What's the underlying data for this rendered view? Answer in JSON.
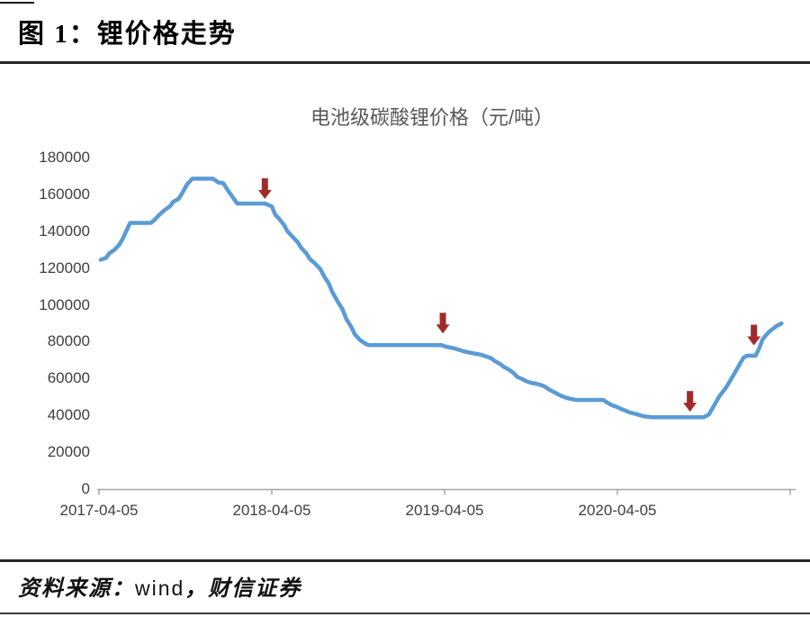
{
  "figure": {
    "title": "图 1：锂价格走势"
  },
  "source": {
    "prefix": "资料来源：",
    "name": "wind",
    "suffix": "，财信证券"
  },
  "chart_data": {
    "type": "line",
    "title": "电池级碳酸锂价格（元/吨）",
    "xlabel": "",
    "ylabel": "元/吨",
    "ylim": [
      0,
      180000
    ],
    "y_ticks": [
      180000,
      160000,
      140000,
      120000,
      100000,
      80000,
      60000,
      40000,
      20000,
      0
    ],
    "x_tick_labels": [
      "2017-04-05",
      "2018-04-05",
      "2019-04-05",
      "2020-04-05"
    ],
    "x_axis_note": "t_years = years since 2017-04-05; axis extends to 2021-04-05",
    "grid": false,
    "legend": "none",
    "line_color": "#5B9BD5",
    "arrow_color": "#A02C2A",
    "axis_color": "#A6A6A6",
    "series": [
      {
        "name": "电池级碳酸锂价格",
        "unit": "元/吨",
        "points": [
          [
            0.01,
            124500
          ],
          [
            0.04,
            125500
          ],
          [
            0.06,
            128000
          ],
          [
            0.09,
            130000
          ],
          [
            0.12,
            133000
          ],
          [
            0.14,
            136500
          ],
          [
            0.17,
            142500
          ],
          [
            0.18,
            144500
          ],
          [
            0.3,
            144500
          ],
          [
            0.32,
            146000
          ],
          [
            0.35,
            149000
          ],
          [
            0.38,
            151500
          ],
          [
            0.41,
            153500
          ],
          [
            0.43,
            156000
          ],
          [
            0.46,
            157500
          ],
          [
            0.48,
            160500
          ],
          [
            0.51,
            165500
          ],
          [
            0.54,
            168500
          ],
          [
            0.66,
            168500
          ],
          [
            0.69,
            166500
          ],
          [
            0.72,
            166000
          ],
          [
            0.74,
            163000
          ],
          [
            0.77,
            159000
          ],
          [
            0.8,
            155000
          ],
          [
            0.96,
            155000
          ],
          [
            1.0,
            153500
          ],
          [
            1.02,
            149000
          ],
          [
            1.04,
            147000
          ],
          [
            1.07,
            143500
          ],
          [
            1.09,
            140000
          ],
          [
            1.12,
            137000
          ],
          [
            1.15,
            134000
          ],
          [
            1.17,
            131000
          ],
          [
            1.2,
            128000
          ],
          [
            1.22,
            125000
          ],
          [
            1.25,
            122500
          ],
          [
            1.28,
            119500
          ],
          [
            1.3,
            116000
          ],
          [
            1.33,
            111500
          ],
          [
            1.35,
            107000
          ],
          [
            1.38,
            102000
          ],
          [
            1.41,
            97500
          ],
          [
            1.43,
            92500
          ],
          [
            1.46,
            88000
          ],
          [
            1.48,
            84000
          ],
          [
            1.51,
            81000
          ],
          [
            1.54,
            79000
          ],
          [
            1.56,
            78200
          ],
          [
            1.98,
            78200
          ],
          [
            2.01,
            77300
          ],
          [
            2.06,
            76300
          ],
          [
            2.11,
            74800
          ],
          [
            2.16,
            73800
          ],
          [
            2.21,
            73000
          ],
          [
            2.24,
            72000
          ],
          [
            2.27,
            71000
          ],
          [
            2.29,
            69500
          ],
          [
            2.32,
            68000
          ],
          [
            2.34,
            66500
          ],
          [
            2.37,
            65000
          ],
          [
            2.4,
            63000
          ],
          [
            2.42,
            61000
          ],
          [
            2.45,
            59700
          ],
          [
            2.47,
            58700
          ],
          [
            2.5,
            57700
          ],
          [
            2.53,
            57200
          ],
          [
            2.55,
            56700
          ],
          [
            2.58,
            55700
          ],
          [
            2.6,
            54300
          ],
          [
            2.63,
            52800
          ],
          [
            2.66,
            51300
          ],
          [
            2.68,
            50400
          ],
          [
            2.71,
            49400
          ],
          [
            2.73,
            49000
          ],
          [
            2.76,
            48400
          ],
          [
            2.92,
            48400
          ],
          [
            2.94,
            47000
          ],
          [
            2.97,
            45500
          ],
          [
            3.0,
            44500
          ],
          [
            3.02,
            43500
          ],
          [
            3.05,
            42500
          ],
          [
            3.07,
            41600
          ],
          [
            3.1,
            41000
          ],
          [
            3.13,
            40100
          ],
          [
            3.15,
            39600
          ],
          [
            3.18,
            39200
          ],
          [
            3.2,
            39000
          ],
          [
            3.5,
            39000
          ],
          [
            3.53,
            40600
          ],
          [
            3.56,
            45500
          ],
          [
            3.59,
            50400
          ],
          [
            3.63,
            55300
          ],
          [
            3.66,
            60000
          ],
          [
            3.7,
            66500
          ],
          [
            3.73,
            71400
          ],
          [
            3.75,
            72400
          ],
          [
            3.8,
            72400
          ],
          [
            3.82,
            76300
          ],
          [
            3.84,
            81200
          ],
          [
            3.86,
            83600
          ],
          [
            3.88,
            85600
          ],
          [
            3.9,
            87000
          ],
          [
            3.92,
            88500
          ],
          [
            3.95,
            90000
          ]
        ]
      }
    ],
    "annotations": [
      {
        "type": "down-arrow",
        "t_years": 0.96,
        "tip_value": 157500
      },
      {
        "type": "down-arrow",
        "t_years": 1.99,
        "tip_value": 84500
      },
      {
        "type": "down-arrow",
        "t_years": 3.42,
        "tip_value": 42000
      },
      {
        "type": "down-arrow",
        "t_years": 3.79,
        "tip_value": 78000
      }
    ]
  }
}
